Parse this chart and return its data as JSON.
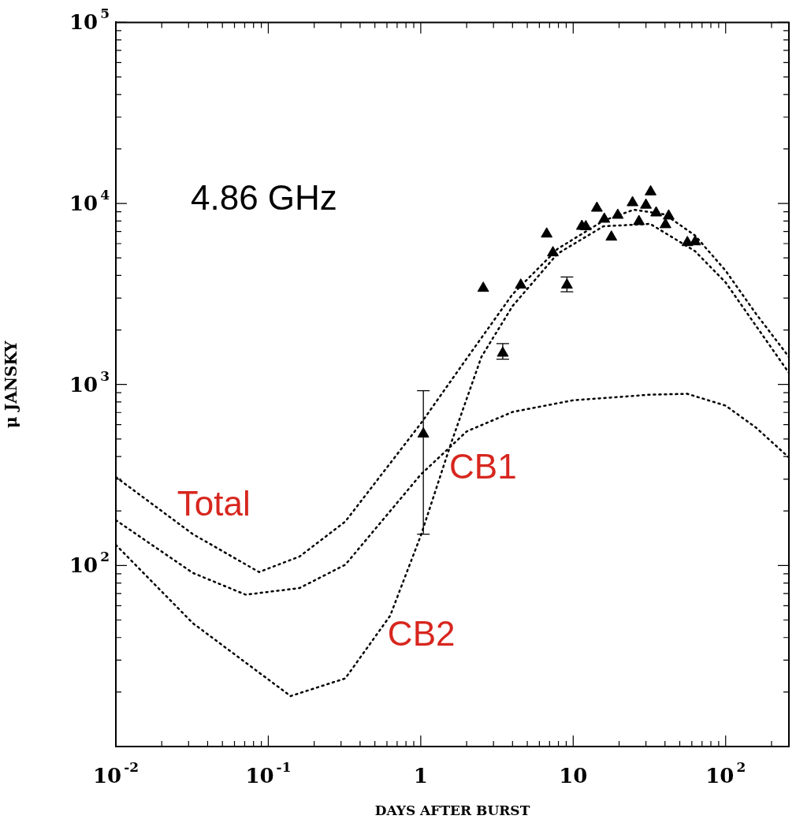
{
  "chart_data": {
    "type": "line",
    "xlabel": "DAYS AFTER BURST",
    "ylabel": "μ JANSKY",
    "annotations": [
      "4.86 GHz"
    ],
    "log": "xy",
    "grid": false,
    "legend": false,
    "xlim": [
      0.01,
      260
    ],
    "ylim": [
      10,
      100000
    ],
    "xticks": [
      {
        "value": 0.01,
        "label": "10$^{-2}$"
      },
      {
        "value": 0.02,
        "label": null
      },
      {
        "value": 0.03,
        "label": null
      },
      {
        "value": 0.04,
        "label": null
      },
      {
        "value": 0.05,
        "label": null
      },
      {
        "value": 0.06,
        "label": null
      },
      {
        "value": 0.07,
        "label": null
      },
      {
        "value": 0.08,
        "label": null
      },
      {
        "value": 0.09,
        "label": null
      },
      {
        "value": 0.1,
        "label": "10$^{-1}$"
      },
      {
        "value": 0.2,
        "label": null
      },
      {
        "value": 0.3,
        "label": null
      },
      {
        "value": 0.4,
        "label": null
      },
      {
        "value": 0.5,
        "label": null
      },
      {
        "value": 0.6,
        "label": null
      },
      {
        "value": 0.7,
        "label": null
      },
      {
        "value": 0.8,
        "label": null
      },
      {
        "value": 0.9,
        "label": null
      },
      {
        "value": 1,
        "label": "1"
      },
      {
        "value": 2,
        "label": null
      },
      {
        "value": 3,
        "label": null
      },
      {
        "value": 4,
        "label": null
      },
      {
        "value": 5,
        "label": null
      },
      {
        "value": 6,
        "label": null
      },
      {
        "value": 7,
        "label": null
      },
      {
        "value": 8,
        "label": null
      },
      {
        "value": 9,
        "label": null
      },
      {
        "value": 10,
        "label": "10"
      },
      {
        "value": 20,
        "label": null
      },
      {
        "value": 30,
        "label": null
      },
      {
        "value": 40,
        "label": null
      },
      {
        "value": 50,
        "label": null
      },
      {
        "value": 60,
        "label": null
      },
      {
        "value": 70,
        "label": null
      },
      {
        "value": 80,
        "label": null
      },
      {
        "value": 90,
        "label": null
      },
      {
        "value": 100,
        "label": "10$^{2}$"
      },
      {
        "value": 200,
        "label": null
      }
    ],
    "yticks": [
      {
        "value": 20,
        "label": null
      },
      {
        "value": 30,
        "label": null
      },
      {
        "value": 40,
        "label": null
      },
      {
        "value": 50,
        "label": null
      },
      {
        "value": 60,
        "label": null
      },
      {
        "value": 70,
        "label": null
      },
      {
        "value": 80,
        "label": null
      },
      {
        "value": 90,
        "label": null
      },
      {
        "value": 100,
        "label": "10$^{2}$"
      },
      {
        "value": 200,
        "label": null
      },
      {
        "value": 300,
        "label": null
      },
      {
        "value": 400,
        "label": null
      },
      {
        "value": 500,
        "label": null
      },
      {
        "value": 600,
        "label": null
      },
      {
        "value": 700,
        "label": null
      },
      {
        "value": 800,
        "label": null
      },
      {
        "value": 900,
        "label": null
      },
      {
        "value": 1000,
        "label": "10$^{3}$"
      },
      {
        "value": 2000,
        "label": null
      },
      {
        "value": 3000,
        "label": null
      },
      {
        "value": 4000,
        "label": null
      },
      {
        "value": 5000,
        "label": null
      },
      {
        "value": 6000,
        "label": null
      },
      {
        "value": 7000,
        "label": null
      },
      {
        "value": 8000,
        "label": null
      },
      {
        "value": 9000,
        "label": null
      },
      {
        "value": 10000,
        "label": "10$^{4}$"
      },
      {
        "value": 20000,
        "label": null
      },
      {
        "value": 30000,
        "label": null
      },
      {
        "value": 40000,
        "label": null
      },
      {
        "value": 50000,
        "label": null
      },
      {
        "value": 60000,
        "label": null
      },
      {
        "value": 70000,
        "label": null
      },
      {
        "value": 80000,
        "label": null
      },
      {
        "value": 90000,
        "label": null
      },
      {
        "value": 100000,
        "label": "10$^{5}$"
      }
    ],
    "series": [
      {
        "name": "Total",
        "line_style": "dotted",
        "marker": "none",
        "color": "#000000",
        "x": [
          0.01,
          0.032,
          0.087,
          0.16,
          0.32,
          1,
          2,
          4,
          7.9,
          15.8,
          25,
          40,
          63,
          100,
          158,
          260
        ],
        "values": [
          308,
          149,
          92,
          112,
          175,
          608,
          1390,
          3150,
          5610,
          8030,
          9230,
          8690,
          6650,
          4250,
          2460,
          1420
        ]
      },
      {
        "name": "CB1",
        "line_style": "dotted",
        "marker": "none",
        "color": "#000000",
        "x": [
          0.01,
          0.032,
          0.071,
          0.16,
          0.32,
          1,
          2,
          4,
          10,
          32,
          56,
          100,
          158,
          260
        ],
        "values": [
          178,
          91,
          69,
          75,
          101,
          318,
          550,
          705,
          818,
          878,
          888,
          764,
          578,
          395
        ]
      },
      {
        "name": "CB2",
        "line_style": "dotted",
        "marker": "none",
        "color": "#000000",
        "x": [
          0.01,
          0.032,
          0.14,
          0.32,
          0.63,
          1,
          1.58,
          2.5,
          4,
          7.9,
          15.8,
          32,
          63,
          100,
          158,
          260
        ],
        "values": [
          130,
          48,
          19,
          23.8,
          52.8,
          146,
          473,
          1420,
          2710,
          5280,
          7480,
          7710,
          5450,
          3660,
          2110,
          1160
        ]
      },
      {
        "type": "scatter",
        "marker": "triangle",
        "color": "#000000",
        "x": [
          1.04,
          2.57,
          3.45,
          4.53,
          6.7,
          7.36,
          9.1,
          11.4,
          12.1,
          14.3,
          16.0,
          17.8,
          19.6,
          24.5,
          27.0,
          30.0,
          32.2,
          35.0,
          40.3,
          42.3,
          56.1,
          63.1
        ],
        "values": [
          533,
          3400,
          1490,
          3540,
          6780,
          5340,
          3540,
          7480,
          7440,
          9420,
          8190,
          6520,
          8610,
          10100,
          7950,
          9790,
          11600,
          8870,
          7640,
          8530,
          6080,
          6140
        ],
        "errors": [
          [
            149,
            923
          ],
          null,
          [
            1380,
            1680
          ],
          null,
          null,
          null,
          [
            3250,
            3920
          ],
          null,
          null,
          null,
          null,
          null,
          null,
          null,
          null,
          null,
          null,
          null,
          null,
          null,
          null,
          null
        ]
      }
    ]
  }
}
